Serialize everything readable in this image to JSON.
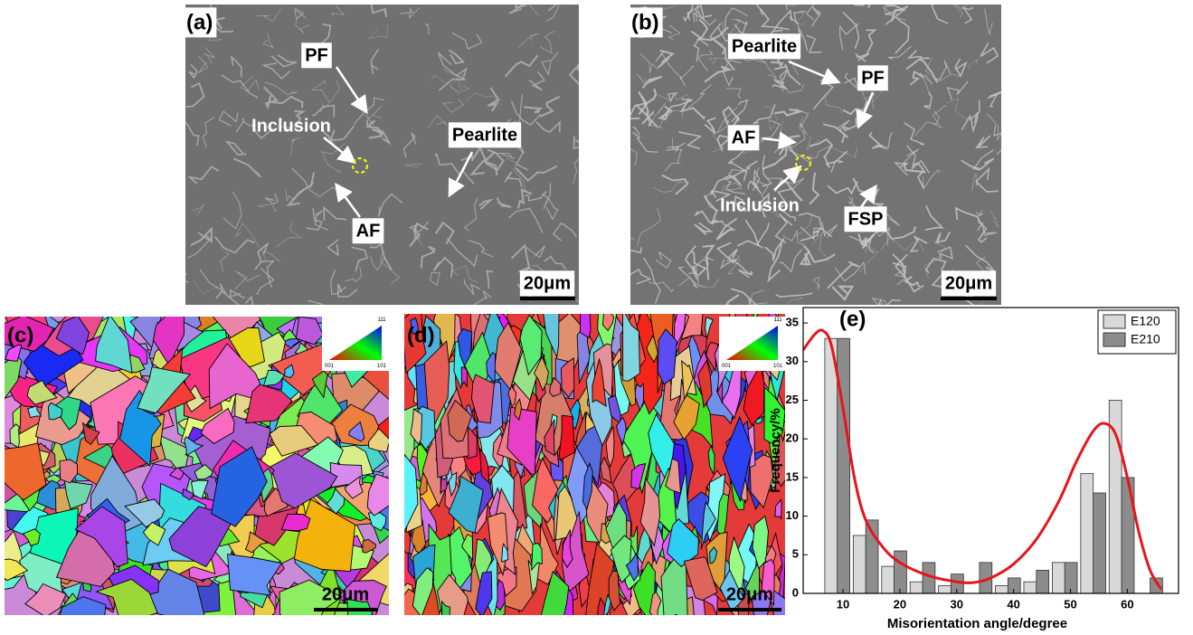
{
  "panels": [
    {
      "label": "(a)",
      "annotations": [
        "PF",
        "Inclusion",
        "Pearlite",
        "AF"
      ],
      "scale_bar": "20μm"
    },
    {
      "label": "(b)",
      "annotations": [
        "Pearlite",
        "PF",
        "AF",
        "Inclusion",
        "FSP"
      ],
      "scale_bar": "20μm"
    },
    {
      "label": "(c)",
      "scale_bar": "20μm",
      "ipf_key": [
        "111",
        "001",
        "101"
      ]
    },
    {
      "label": "(d)",
      "scale_bar": "20μm",
      "ipf_key": [
        "111",
        "001",
        "101"
      ]
    }
  ],
  "chart_data": {
    "type": "bar",
    "label": "(e)",
    "xlabel": "Misorientation angle/degree",
    "ylabel": "Frequency/%",
    "x": [
      9,
      14,
      19,
      24,
      29,
      34,
      39,
      44,
      49,
      54,
      59,
      64
    ],
    "series": [
      {
        "name": "E120",
        "color": "#d9d9d9",
        "values": [
          33,
          7.5,
          3.5,
          1.5,
          1,
          0,
          1,
          1.5,
          4,
          15.5,
          25,
          0
        ]
      },
      {
        "name": "E210",
        "color": "#8c8c8c",
        "values": [
          33,
          9.5,
          5.5,
          4,
          2.5,
          4,
          2,
          3,
          4,
          13,
          15,
          2
        ]
      }
    ],
    "fit": {
      "color": "#e8141b",
      "x": [
        3,
        5,
        6.5,
        8,
        10,
        12,
        14,
        17,
        20,
        25,
        30,
        33,
        36,
        40,
        44,
        48,
        51,
        54,
        56,
        58,
        60,
        62,
        64,
        66
      ],
      "y": [
        31.5,
        33.5,
        34,
        32,
        24,
        15,
        9.5,
        6,
        4,
        2.3,
        1.5,
        1.4,
        2,
        3.8,
        7,
        12,
        17,
        21,
        22,
        20.5,
        15,
        8,
        3,
        0.5
      ]
    },
    "xlim": [
      3,
      69
    ],
    "ylim": [
      0,
      37
    ],
    "xticks": [
      10,
      20,
      30,
      40,
      50,
      60
    ],
    "yticks": [
      0,
      5,
      10,
      15,
      20,
      25,
      30,
      35
    ],
    "legend": "upper right"
  }
}
